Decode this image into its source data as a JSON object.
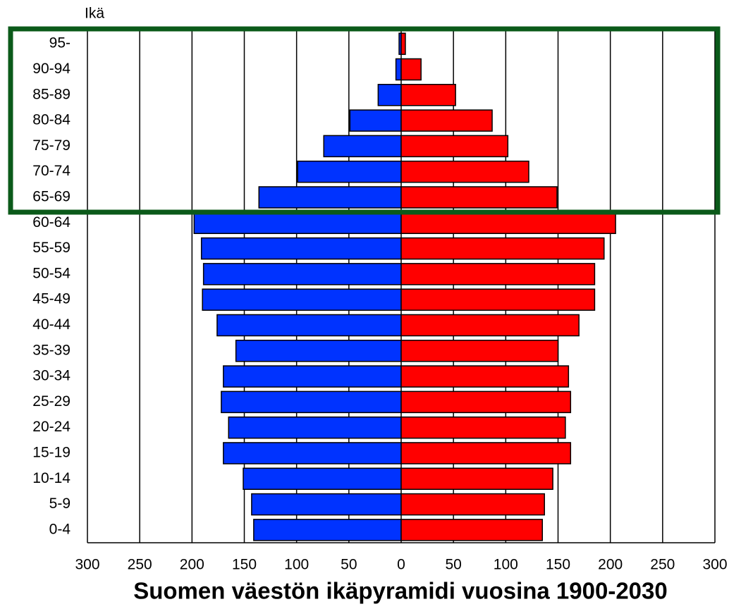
{
  "chart_data": {
    "type": "pyramid",
    "title": "Suomen väestön ikäpyramidi vuosina 1900-2030",
    "y_label": "Ikä",
    "categories": [
      "95-",
      "90-94",
      "85-89",
      "80-84",
      "75-79",
      "70-74",
      "65-69",
      "60-64",
      "55-59",
      "50-54",
      "45-49",
      "40-44",
      "35-39",
      "30-34",
      "25-29",
      "20-24",
      "15-19",
      "10-14",
      "5-9",
      "0-4"
    ],
    "series": [
      {
        "color": "#0033ff",
        "values": [
          -2,
          -5,
          -22,
          -49,
          -74,
          -99,
          -136,
          -198,
          -191,
          -189,
          -190,
          -176,
          -158,
          -170,
          -172,
          -165,
          -170,
          -151,
          -143,
          -141
        ]
      },
      {
        "color": "#ff0000",
        "values": [
          4,
          19,
          52,
          87,
          102,
          122,
          149,
          205,
          194,
          185,
          185,
          170,
          150,
          160,
          162,
          157,
          162,
          145,
          137,
          135
        ]
      }
    ],
    "xlim": [
      -300,
      300
    ],
    "xticks": [
      {
        "value": -300,
        "label": "300"
      },
      {
        "value": -250,
        "label": "250"
      },
      {
        "value": -200,
        "label": "200"
      },
      {
        "value": -150,
        "label": "150"
      },
      {
        "value": -100,
        "label": "100"
      },
      {
        "value": -50,
        "label": "50"
      },
      0,
      50,
      100,
      150,
      200,
      250,
      300
    ],
    "grid": true
  }
}
